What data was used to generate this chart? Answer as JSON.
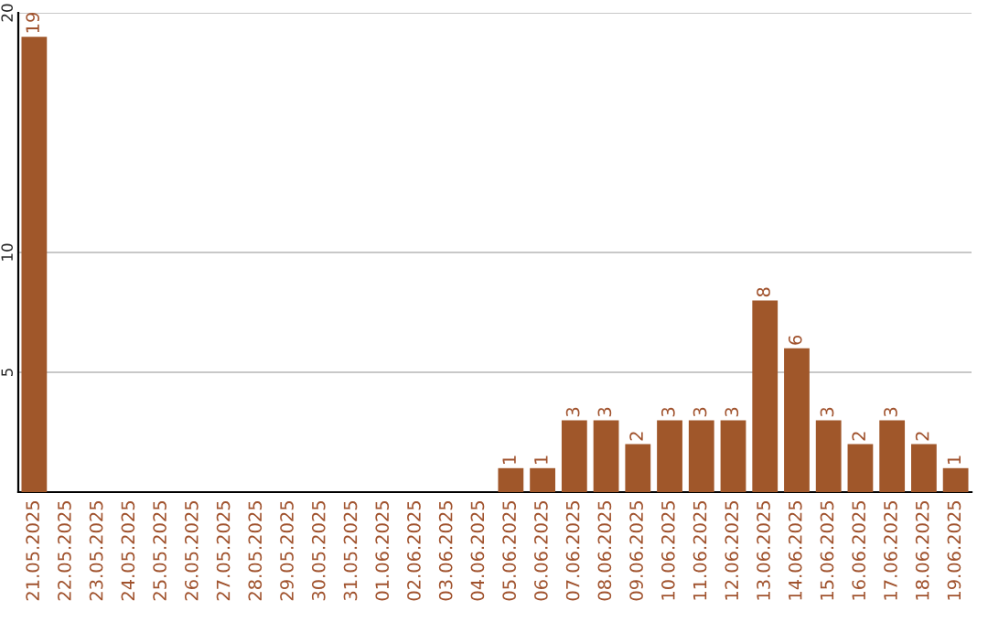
{
  "chart_data": {
    "type": "bar",
    "categories": [
      "21.05.2025",
      "22.05.2025",
      "23.05.2025",
      "24.05.2025",
      "25.05.2025",
      "26.05.2025",
      "27.05.2025",
      "28.05.2025",
      "29.05.2025",
      "30.05.2025",
      "31.05.2025",
      "01.06.2025",
      "02.06.2025",
      "03.06.2025",
      "04.06.2025",
      "05.06.2025",
      "06.06.2025",
      "07.06.2025",
      "08.06.2025",
      "09.06.2025",
      "10.06.2025",
      "11.06.2025",
      "12.06.2025",
      "13.06.2025",
      "14.06.2025",
      "15.06.2025",
      "16.06.2025",
      "17.06.2025",
      "18.06.2025",
      "19.06.2025"
    ],
    "values": [
      19,
      0,
      0,
      0,
      0,
      0,
      0,
      0,
      0,
      0,
      0,
      0,
      0,
      0,
      0,
      1,
      1,
      3,
      3,
      2,
      3,
      3,
      3,
      8,
      6,
      3,
      2,
      3,
      2,
      1
    ],
    "value_labels": [
      "19",
      null,
      null,
      null,
      null,
      null,
      null,
      null,
      null,
      null,
      null,
      null,
      null,
      null,
      null,
      "1",
      "1",
      "3",
      "3",
      "2",
      "3",
      "3",
      "3",
      "8",
      "6",
      "3",
      "2",
      "3",
      "2",
      "1"
    ],
    "color": "#a0572a",
    "ylim": [
      0,
      20
    ],
    "yticks": [
      5,
      10,
      20
    ],
    "grid": "y"
  }
}
